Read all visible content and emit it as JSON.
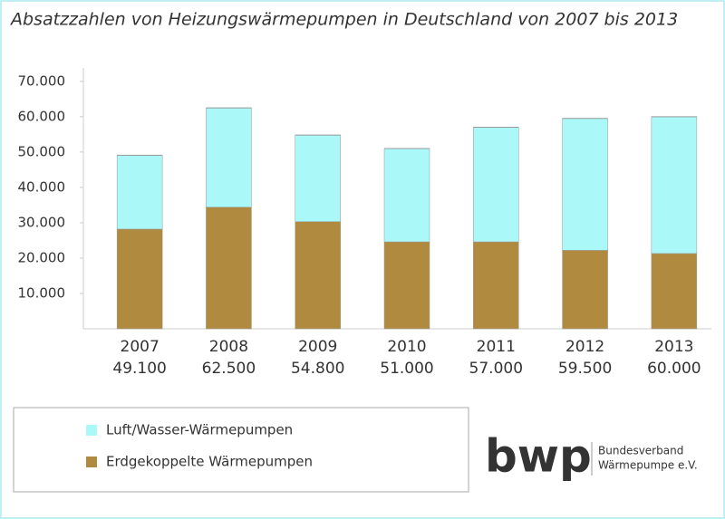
{
  "chart_data": {
    "type": "stacked-bar",
    "title": "Absatzzahlen von Heizungswärmepumpen in Deutschland von 2007 bis 2013",
    "categories": [
      "2007",
      "2008",
      "2009",
      "2010",
      "2011",
      "2012",
      "2013"
    ],
    "series": [
      {
        "name": "Erdgekoppelte Wärmepumpen",
        "color": "#b08a3e",
        "values": [
          28200,
          34400,
          30300,
          24600,
          24600,
          22200,
          21300
        ]
      },
      {
        "name": "Luft/Wasser-Wärmepumpen",
        "color": "#aaf8f8",
        "values": [
          20900,
          28100,
          24500,
          26400,
          32400,
          37300,
          38700
        ]
      }
    ],
    "totals": {
      "values": [
        49100,
        62500,
        54800,
        51000,
        57000,
        59500,
        60000
      ],
      "value_labels": [
        "49.100",
        "62.500",
        "54.800",
        "51.000",
        "57.000",
        "59.500",
        "60.000"
      ]
    },
    "legend_order": [
      1,
      0
    ],
    "ylim": [
      0,
      72000
    ],
    "yticks": [
      {
        "value": 10000,
        "label": "10.000"
      },
      {
        "value": 20000,
        "label": "20.000"
      },
      {
        "value": 30000,
        "label": "30.000"
      },
      {
        "value": 40000,
        "label": "40.000"
      },
      {
        "value": 50000,
        "label": "50.000"
      },
      {
        "value": 60000,
        "label": "60.000"
      },
      {
        "value": 70000,
        "label": "70.000"
      }
    ],
    "grid": false
  },
  "logo": {
    "mark": "bwp",
    "line1": "Bundesverband",
    "line2": "Wärmepumpe e.V."
  }
}
